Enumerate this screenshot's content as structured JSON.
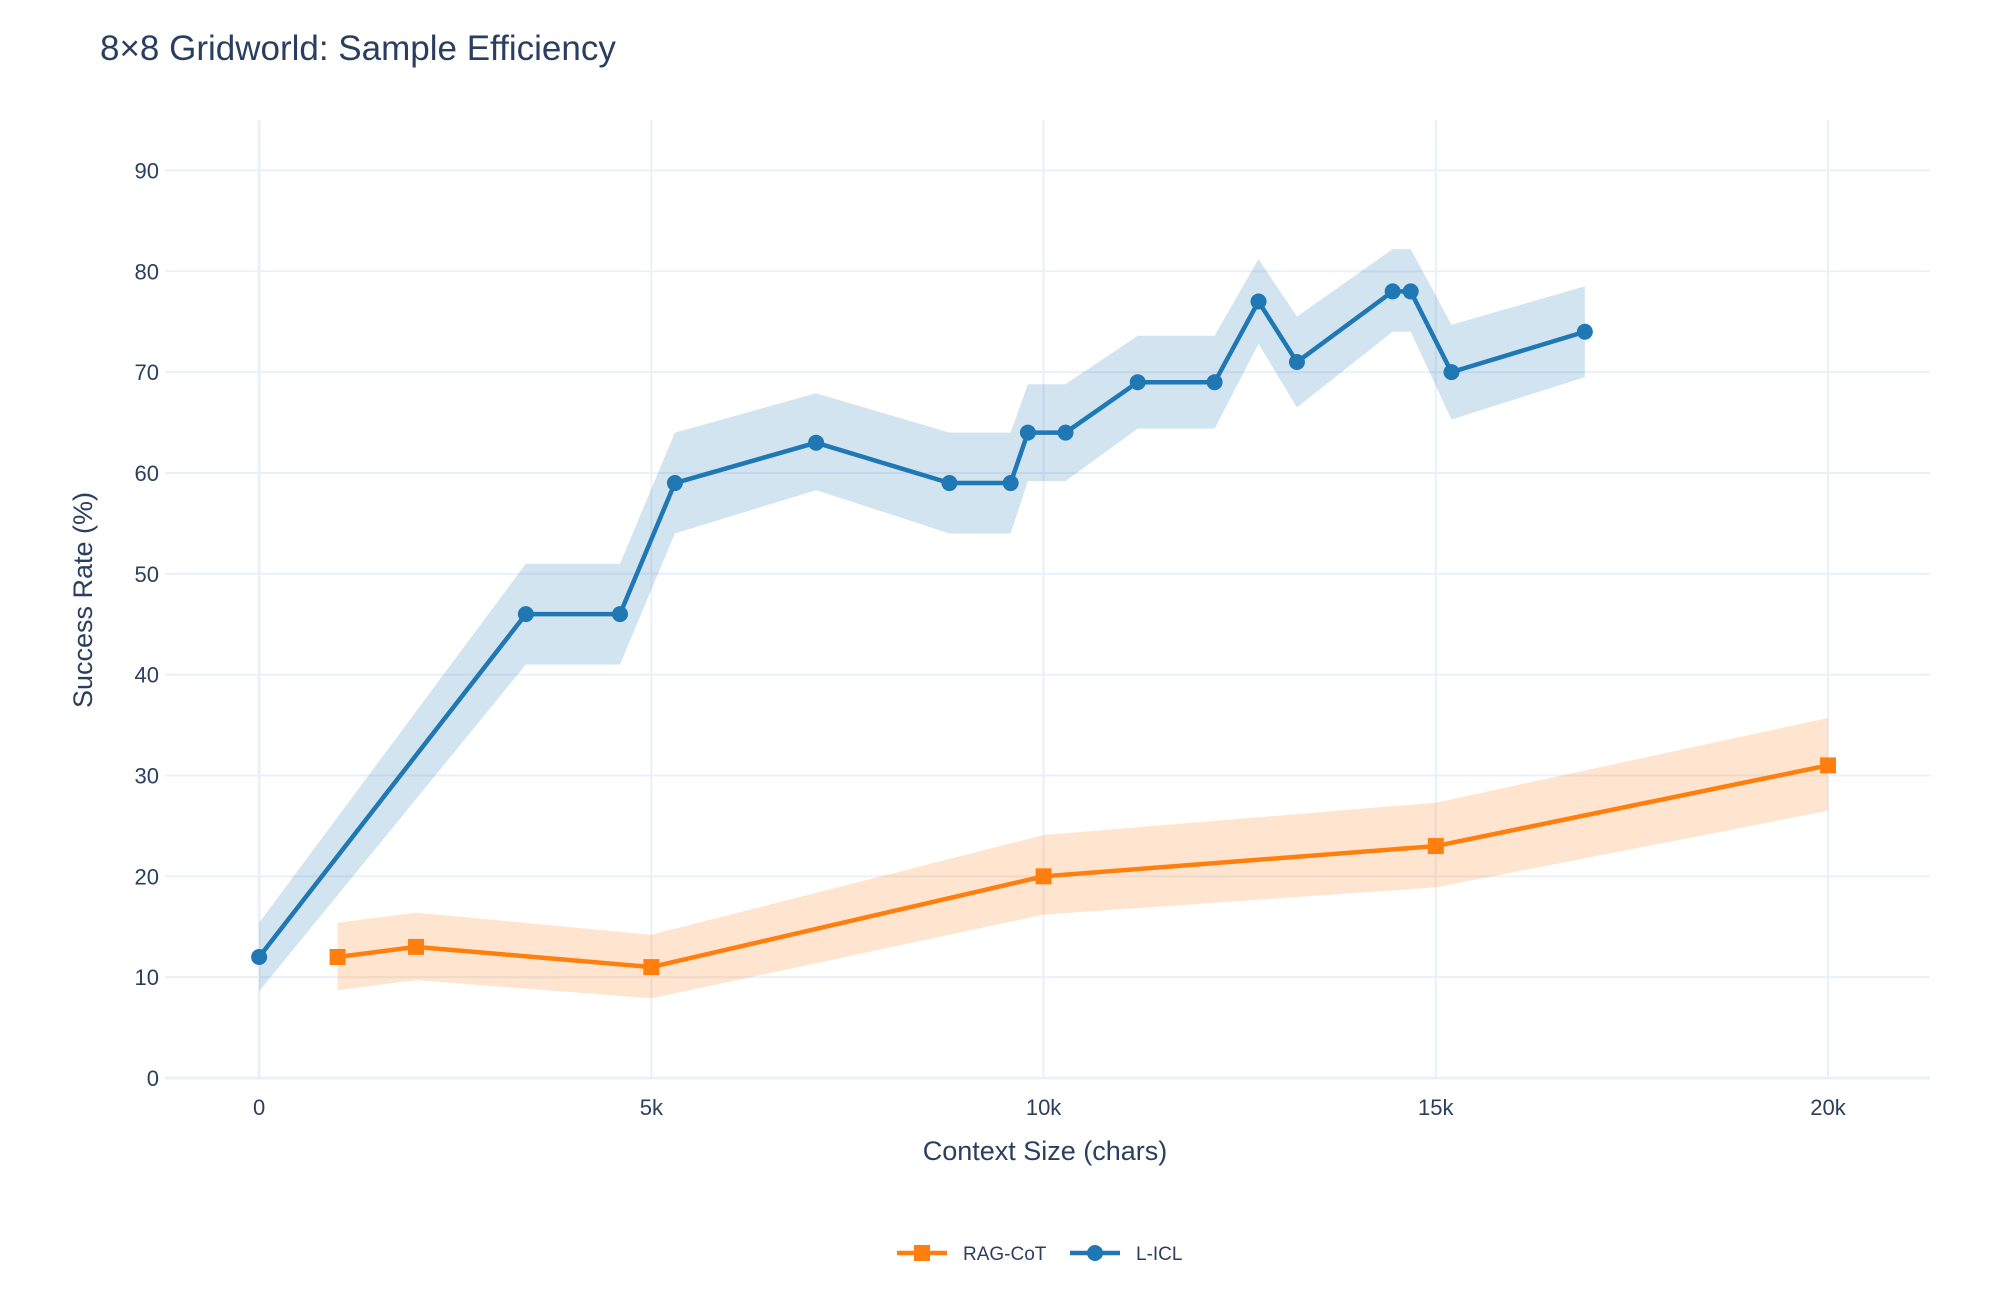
{
  "chart_data": {
    "type": "line",
    "title": "8×8 Gridworld: Sample Efficiency",
    "xlabel": "Context Size (chars)",
    "ylabel": "Success Rate (%)",
    "xlim": [
      -1200,
      21300
    ],
    "ylim": [
      0,
      95
    ],
    "x_ticks": [
      0,
      5000,
      10000,
      15000,
      20000
    ],
    "x_tick_labels": [
      "0",
      "5k",
      "10k",
      "15k",
      "20k"
    ],
    "y_ticks": [
      0,
      10,
      20,
      30,
      40,
      50,
      60,
      70,
      80,
      90
    ],
    "y_tick_labels": [
      "0",
      "10",
      "20",
      "30",
      "40",
      "50",
      "60",
      "70",
      "80",
      "90"
    ],
    "grid": true,
    "legend_position": "bottom-center",
    "series": [
      {
        "name": "RAG-CoT",
        "color": "#ff7f0e",
        "band_color": "#ff7f0e",
        "marker": "square",
        "x": [
          1000,
          2000,
          5000,
          10000,
          15000,
          20000
        ],
        "y": [
          12,
          13,
          11,
          20,
          23,
          31
        ],
        "upper": [
          15.4,
          16.4,
          14.2,
          24.1,
          27.3,
          35.7
        ],
        "lower": [
          8.7,
          9.7,
          7.9,
          16.2,
          18.9,
          26.5
        ]
      },
      {
        "name": "L-ICL",
        "color": "#1f77b4",
        "band_color": "#1f77b4",
        "marker": "circle",
        "x": [
          0,
          3400,
          4600,
          5300,
          7100,
          8800,
          9580,
          9800,
          10280,
          11200,
          12180,
          12740,
          13230,
          14450,
          14680,
          15200,
          16900
        ],
        "y": [
          12,
          46,
          46,
          59,
          63,
          59,
          59,
          64,
          64,
          69,
          69,
          77,
          71,
          78,
          78,
          70,
          74
        ],
        "upper": [
          15.4,
          51,
          51,
          64,
          67.9,
          64,
          64,
          68.8,
          68.8,
          73.6,
          73.6,
          81.2,
          75.5,
          82.2,
          82.2,
          74.7,
          78.5
        ],
        "lower": [
          8.6,
          41,
          41,
          54,
          58.3,
          54,
          54,
          59.2,
          59.2,
          64.4,
          64.4,
          72.8,
          66.5,
          74,
          74,
          65.3,
          69.5
        ]
      }
    ]
  }
}
